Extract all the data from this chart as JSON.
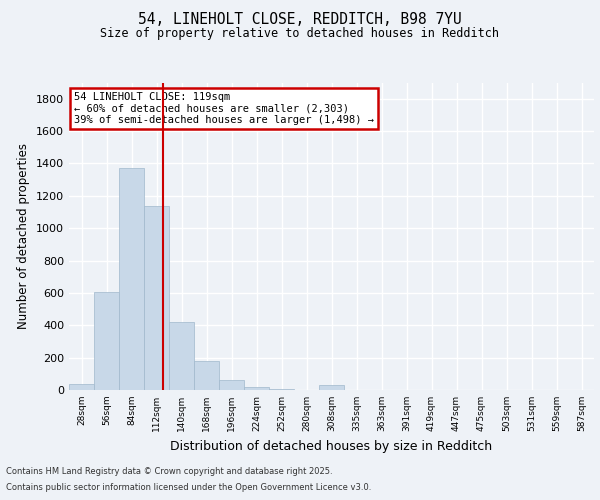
{
  "title1": "54, LINEHOLT CLOSE, REDDITCH, B98 7YU",
  "title2": "Size of property relative to detached houses in Redditch",
  "xlabel": "Distribution of detached houses by size in Redditch",
  "ylabel": "Number of detached properties",
  "bar_values": [
    40,
    605,
    1370,
    1140,
    420,
    180,
    60,
    20,
    5,
    2,
    30,
    0,
    0,
    0,
    0,
    0,
    0,
    0,
    0,
    0,
    0
  ],
  "bar_labels": [
    "28sqm",
    "56sqm",
    "84sqm",
    "112sqm",
    "140sqm",
    "168sqm",
    "196sqm",
    "224sqm",
    "252sqm",
    "280sqm",
    "308sqm",
    "335sqm",
    "363sqm",
    "391sqm",
    "419sqm",
    "447sqm",
    "475sqm",
    "503sqm",
    "531sqm",
    "559sqm",
    "587sqm"
  ],
  "bar_color": "#c8d8e8",
  "bar_edge_color": "#a0b8cc",
  "vline_x": 3,
  "vline_color": "#cc0000",
  "bin_width": 1,
  "ylim": [
    0,
    1900
  ],
  "yticks": [
    0,
    200,
    400,
    600,
    800,
    1000,
    1200,
    1400,
    1600,
    1800
  ],
  "annotation_title": "54 LINEHOLT CLOSE: 119sqm",
  "annotation_line1": "← 60% of detached houses are smaller (2,303)",
  "annotation_line2": "39% of semi-detached houses are larger (1,498) →",
  "annotation_box_color": "#cc0000",
  "footer1": "Contains HM Land Registry data © Crown copyright and database right 2025.",
  "footer2": "Contains public sector information licensed under the Open Government Licence v3.0.",
  "bg_color": "#eef2f7",
  "grid_color": "#ffffff"
}
